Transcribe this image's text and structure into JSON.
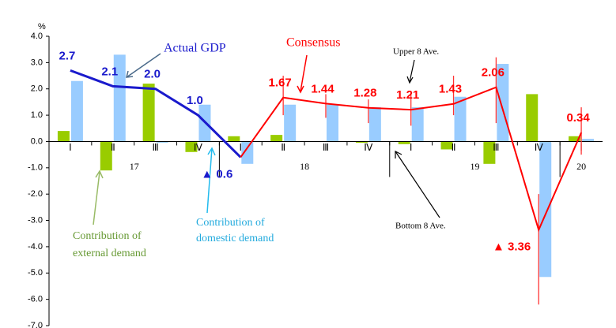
{
  "chart_data": {
    "type": "bar",
    "unit": "%",
    "categories": [
      "Ⅰ",
      "Ⅱ",
      "Ⅲ",
      "Ⅳ",
      "Ⅰ",
      "Ⅱ",
      "Ⅲ",
      "Ⅳ",
      "Ⅰ",
      "Ⅱ",
      "Ⅲ",
      "Ⅳ",
      "Ⅰ"
    ],
    "groups": [
      {
        "label": "17",
        "count": 4
      },
      {
        "label": "18",
        "count": 4
      },
      {
        "label": "19",
        "count": 4
      },
      {
        "label": "20",
        "count": 1
      }
    ],
    "ylim": [
      -7,
      4
    ],
    "yticks": [
      {
        "value": 4,
        "label": "4.0"
      },
      {
        "value": 3,
        "label": "3.0"
      },
      {
        "value": 2,
        "label": "2.0"
      },
      {
        "value": 1,
        "label": "1.0"
      },
      {
        "value": 0,
        "label": "0.0"
      },
      {
        "value": -1,
        "label": "-1.0"
      },
      {
        "value": -2,
        "label": "-2.0"
      },
      {
        "value": -3,
        "label": "-3.0"
      },
      {
        "value": -4,
        "label": "-4.0"
      },
      {
        "value": -5,
        "label": "-5.0"
      },
      {
        "value": -6,
        "label": "-6.0"
      },
      {
        "value": -7,
        "label": "-7.0"
      }
    ],
    "bars": [
      {
        "name": "Contribution of external demand",
        "color": "#99cc00",
        "values": [
          0.4,
          -1.1,
          2.2,
          -0.4,
          0.2,
          0.25,
          0,
          -0.05,
          -0.1,
          -0.3,
          -0.85,
          1.8,
          0.2
        ]
      },
      {
        "name": "Contribution of domestic demand",
        "color": "#99ccff",
        "values": [
          2.3,
          3.3,
          -0.05,
          1.4,
          -0.85,
          1.4,
          1.4,
          1.3,
          1.3,
          1.7,
          2.95,
          -5.15,
          0.1
        ]
      }
    ],
    "lines": [
      {
        "name": "Actual GDP",
        "color": "#1a1acc",
        "values": [
          2.7,
          2.1,
          2.0,
          1.0,
          -0.6,
          null,
          null,
          null,
          null,
          null,
          null,
          null,
          null
        ],
        "value_labels": [
          "2.7",
          "2.1",
          "2.0",
          "1.0",
          "▲ 0.6",
          null,
          null,
          null,
          null,
          null,
          null,
          null,
          null
        ]
      },
      {
        "name": "Consensus",
        "color": "#ff0000",
        "values": [
          null,
          null,
          null,
          null,
          -0.6,
          1.67,
          1.44,
          1.28,
          1.21,
          1.43,
          2.06,
          -3.36,
          0.34
        ],
        "value_labels": [
          null,
          null,
          null,
          null,
          null,
          "1.67",
          "1.44",
          "1.28",
          "1.21",
          "1.43",
          "2.06",
          "▲ 3.36",
          "0.34"
        ]
      }
    ],
    "range_high": [
      null,
      null,
      null,
      null,
      null,
      2.5,
      1.8,
      1.6,
      1.8,
      2.5,
      3.2,
      -2.0,
      1.3
    ],
    "range_low": [
      null,
      null,
      null,
      null,
      null,
      1.0,
      0.9,
      0.7,
      0.6,
      1.0,
      0.7,
      -6.2,
      -0.5
    ],
    "range_color": "#ff3333",
    "annotations": {
      "upper": "Upper 8 Ave.",
      "bottom": "Bottom 8 Ave.",
      "external": [
        "Contribution of",
        "external demand"
      ],
      "domestic": [
        "Contribution of",
        "domestic demand"
      ]
    }
  }
}
